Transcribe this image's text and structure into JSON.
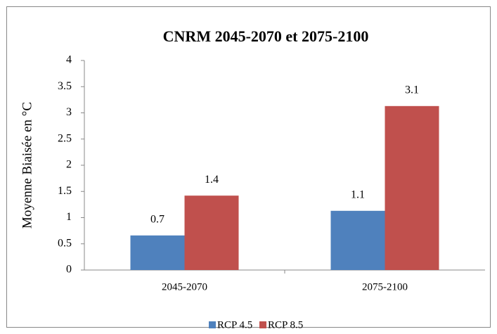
{
  "chart_data": {
    "type": "bar",
    "title": "CNRM 2045-2070 et 2075-2100",
    "y_label": "Moyenne Biaisée en °C",
    "categories": [
      "2045-2070",
      "2075-2100"
    ],
    "series": [
      {
        "name": "RCP 4.5",
        "color": "#4f81bd",
        "values": [
          0.66,
          1.13
        ],
        "value_labels": [
          "0.7",
          "1.1"
        ]
      },
      {
        "name": "RCP 8.5",
        "color": "#c0504d",
        "values": [
          1.42,
          3.13
        ],
        "value_labels": [
          "1.4",
          "3.1"
        ]
      }
    ],
    "ylim": [
      0,
      4
    ],
    "yticks": [
      0,
      0.5,
      1,
      1.5,
      2,
      2.5,
      3,
      3.5,
      4
    ],
    "grid": false,
    "legend": "bottom"
  }
}
